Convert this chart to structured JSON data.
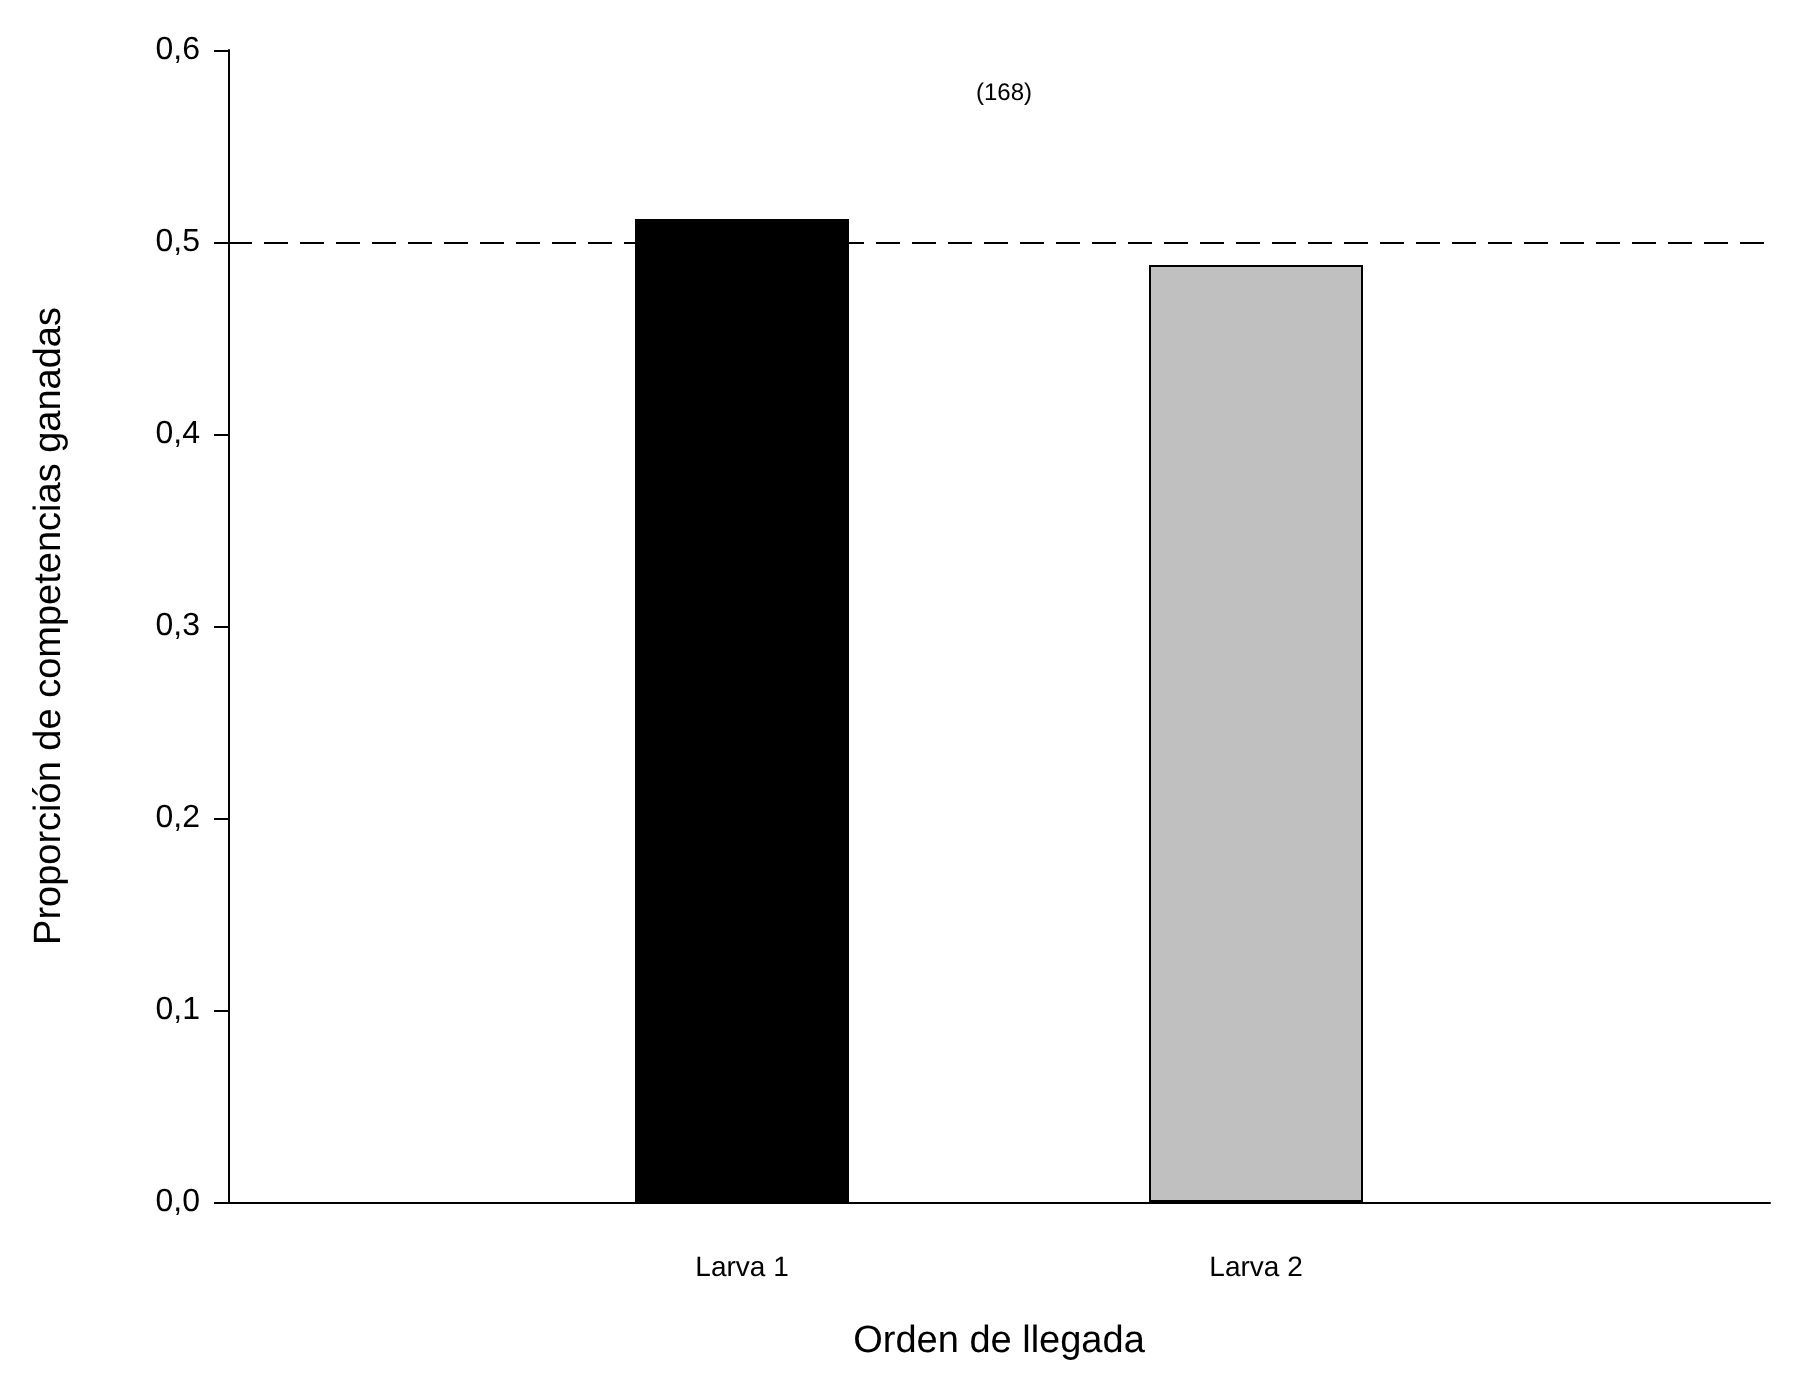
{
  "chart_data": {
    "type": "bar",
    "xlabel": "Orden de llegada",
    "ylabel": "Proporción de competencias ganadas",
    "categories": [
      "Larva 1",
      "Larva 2"
    ],
    "values": [
      0.512,
      0.488
    ],
    "colors": [
      "#000000",
      "#c0c0c0"
    ],
    "ylim": [
      0,
      0.6
    ],
    "yticks": [
      {
        "value": 0,
        "label": "0,0"
      },
      {
        "value": 0.1,
        "label": "0,1"
      },
      {
        "value": 0.2,
        "label": "0,2"
      },
      {
        "value": 0.3,
        "label": "0,3"
      },
      {
        "value": 0.4,
        "label": "0,4"
      },
      {
        "value": 0.5,
        "label": "0,5"
      },
      {
        "value": 0.6,
        "label": "0,6"
      }
    ],
    "ref_lines": [
      {
        "axis": "y",
        "value": 0.5,
        "color": "#000000",
        "line_style": "dashed"
      }
    ],
    "annotations": [
      "(168)"
    ]
  }
}
